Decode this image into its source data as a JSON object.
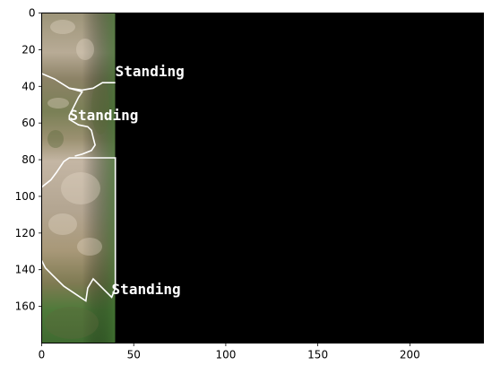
{
  "figure": {
    "x_axis": {
      "range": [
        0,
        240
      ],
      "ticks": [
        "0",
        "50",
        "100",
        "150",
        "200"
      ]
    },
    "y_axis": {
      "range": [
        0,
        180
      ],
      "inverted": true,
      "ticks": [
        "0",
        "20",
        "40",
        "60",
        "80",
        "100",
        "120",
        "140",
        "160"
      ]
    },
    "image_extent": {
      "x": [
        0,
        40
      ],
      "y": [
        0,
        180
      ]
    },
    "background_color": "#000000",
    "annotation_color": "#ffffff",
    "annotations": [
      {
        "label": "Standing",
        "anchor": [
          40,
          32
        ],
        "polygon": [
          [
            0,
            33
          ],
          [
            7,
            36
          ],
          [
            15,
            41
          ],
          [
            22,
            42
          ],
          [
            28,
            41
          ],
          [
            33,
            38
          ],
          [
            40,
            38
          ]
        ]
      },
      {
        "label": "Standing",
        "anchor": [
          15,
          56
        ],
        "polygon": [
          [
            15,
            41
          ],
          [
            22,
            43
          ],
          [
            20,
            46
          ],
          [
            18,
            50
          ],
          [
            15,
            56
          ],
          [
            15,
            58
          ],
          [
            20,
            61
          ],
          [
            25,
            62
          ],
          [
            27,
            64
          ],
          [
            28,
            68
          ],
          [
            29,
            72
          ],
          [
            27,
            75
          ],
          [
            22,
            77
          ],
          [
            18,
            78
          ]
        ]
      },
      {
        "label": "Standing",
        "anchor": [
          38,
          151
        ],
        "polygon": [
          [
            0,
            95
          ],
          [
            5,
            91
          ],
          [
            8,
            87
          ],
          [
            12,
            81
          ],
          [
            15,
            79
          ],
          [
            40,
            79
          ],
          [
            40,
            150
          ],
          [
            38,
            155
          ],
          [
            34,
            151
          ],
          [
            28,
            145
          ],
          [
            25,
            150
          ],
          [
            24,
            157
          ],
          [
            18,
            153
          ],
          [
            12,
            149
          ],
          [
            6,
            143
          ],
          [
            2,
            139
          ],
          [
            0,
            135
          ]
        ]
      }
    ]
  }
}
